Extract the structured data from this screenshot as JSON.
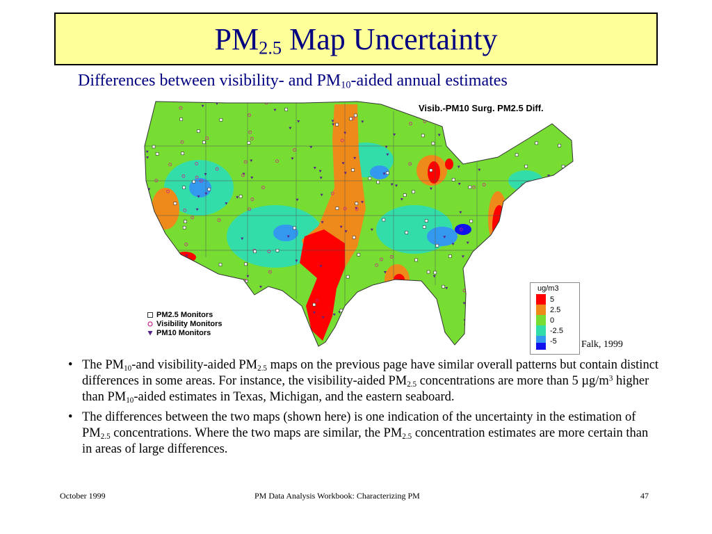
{
  "slide": {
    "title": {
      "main": "PM",
      "sub": "2.5",
      "rest": " Map Uncertainty"
    },
    "subtitle": {
      "a": "Differences between visibility- and PM",
      "sub": "10",
      "b": "-aided annual estimates"
    }
  },
  "map": {
    "title": "Visib.-PM10 Surg. PM2.5 Diff.",
    "legend": {
      "unit": "ug/m3",
      "items": [
        {
          "label": "5",
          "color": "#ff0000"
        },
        {
          "label": "2.5",
          "color": "#ee8a1a"
        },
        {
          "label": "0",
          "color": "#77dd33"
        },
        {
          "label": "-2.5",
          "color": "#33ddaa"
        },
        {
          "label": "-5",
          "color": "#3399ee"
        },
        {
          "label": "",
          "color": "#1111ee"
        }
      ]
    },
    "monitor_legend": [
      {
        "label": "PM2.5 Monitors",
        "icon": "square-icon"
      },
      {
        "label": "Visibility Monitors",
        "icon": "circle-icon"
      },
      {
        "label": "PM10 Monitors",
        "icon": "triangle-icon"
      }
    ],
    "credit": "Falk, 1999"
  },
  "bullets": [
    {
      "t1": "The PM",
      "s1": "10",
      "t2": "-and visibility-aided PM",
      "s2": "2.5",
      "t3": " maps on the previous page have similar overall patterns but contain distinct differences in some areas.  For instance, the visibility-aided PM",
      "s3": "2.5",
      "t4": " concentrations are more than 5 µg/m",
      "sup1": "3",
      "t5": " higher than PM",
      "s4": "10",
      "t6": "-aided estimates in Texas, Michigan, and the eastern seaboard."
    },
    {
      "t1": "The differences between the two maps (shown here) is one indication of the uncertainty in the estimation of PM",
      "s1": "2.5",
      "t2": " concentrations.  Where the two maps are similar, the PM",
      "s2": "2.5",
      "t3": " concentration estimates are more certain than in areas of large differences."
    }
  ],
  "footer": {
    "left": "October 1999",
    "center": "PM Data Analysis Workbook: Characterizing PM",
    "right": "47"
  }
}
